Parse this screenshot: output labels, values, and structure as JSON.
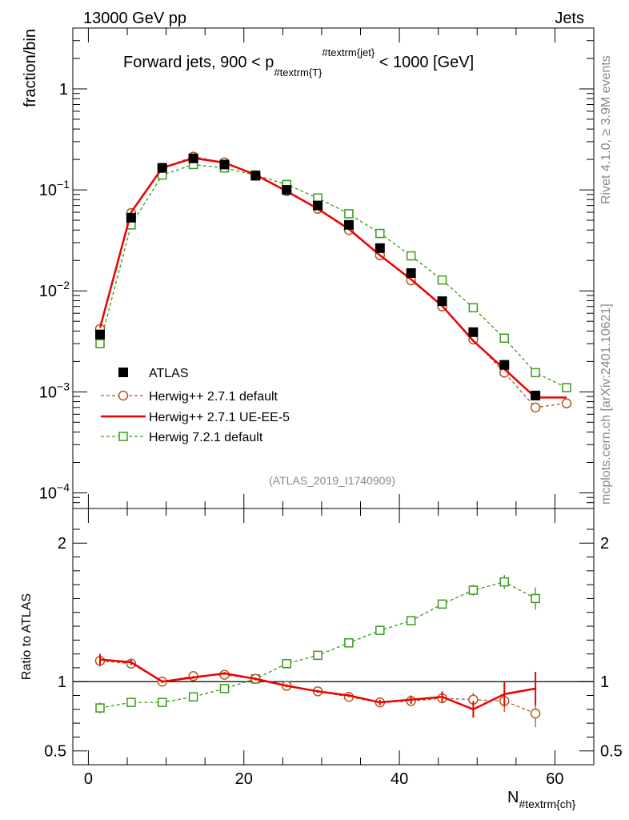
{
  "header": {
    "left": "13000 GeV pp",
    "right": "Jets"
  },
  "side": {
    "rivet": "Rivet 4.1.0, ≥ 3.9M events",
    "mcplots": "mcplots.cern.ch [arXiv:2401.10621]"
  },
  "analysis_id": "(ATLAS_2019_I1740909)",
  "colors": {
    "atlas": "#000000",
    "herwigpp_default": "#b05a1e",
    "herwigpp_ueee5": "#ee0000",
    "herwig7": "#3a9a1a"
  },
  "chart_data": [
    {
      "type": "scatter",
      "title_main": "Forward jets, 900 < p",
      "title_sub": "#textrm{T}",
      "title_sup": "#textrm{jet}",
      "title_tail": " < 1000 [GeV]",
      "ylabel": "fraction/bin",
      "yscale": "log",
      "ylim": [
        7e-05,
        4
      ],
      "xlim": [
        -2,
        65
      ],
      "y_tick_labels": [
        {
          "base": "10",
          "exp": "−4"
        },
        {
          "base": "10",
          "exp": "−3"
        },
        {
          "base": "10",
          "exp": "−2"
        },
        {
          "base": "10",
          "exp": "−1"
        },
        {
          "base": "1",
          "exp": ""
        }
      ],
      "y_tick_values": [
        0.0001,
        0.001,
        0.01,
        0.1,
        1
      ],
      "legend": [
        {
          "label": "ATLAS",
          "style": "marker-square"
        },
        {
          "label": "Herwig++ 2.7.1 default",
          "style": "dashed-circle"
        },
        {
          "label": "Herwig++ 2.7.1 UE-EE-5",
          "style": "solid-line"
        },
        {
          "label": "Herwig 7.2.1 default",
          "style": "dashed-square"
        }
      ],
      "x": [
        1.5,
        5.5,
        9.5,
        13.5,
        17.5,
        21.5,
        25.5,
        29.5,
        33.5,
        37.5,
        41.5,
        45.5,
        49.5,
        53.5,
        57.5,
        61.5
      ],
      "series": [
        {
          "name": "ATLAS",
          "values": [
            0.0037,
            0.053,
            0.165,
            0.205,
            0.178,
            0.138,
            0.1,
            0.07,
            0.045,
            0.0265,
            0.015,
            0.0079,
            0.0039,
            0.00185,
            0.00092,
            null
          ]
        },
        {
          "name": "Herwig++ 2.7.1 default",
          "values": [
            0.0042,
            0.059,
            0.165,
            0.213,
            0.187,
            0.14,
            0.097,
            0.065,
            0.04,
            0.0225,
            0.0127,
            0.007,
            0.0033,
            0.00155,
            0.0007,
            0.00077
          ]
        },
        {
          "name": "Herwig++ 2.7.1 UE-EE-5",
          "values": [
            0.0043,
            0.06,
            0.165,
            0.206,
            0.186,
            0.141,
            0.097,
            0.065,
            0.041,
            0.0225,
            0.013,
            0.0071,
            0.0032,
            0.00168,
            0.00088,
            0.00088
          ]
        },
        {
          "name": "Herwig 7.2.1 default",
          "values": [
            0.003,
            0.045,
            0.14,
            0.178,
            0.165,
            0.14,
            0.113,
            0.083,
            0.058,
            0.037,
            0.0222,
            0.0128,
            0.0068,
            0.0034,
            0.00155,
            0.0011
          ]
        }
      ]
    },
    {
      "type": "line",
      "ylabel": "Ratio to ATLAS",
      "xlabel_main": "N",
      "xlabel_sub": "#textrm{ch}",
      "ylim": [
        0.4,
        2.25
      ],
      "xlim": [
        -2,
        65
      ],
      "x_tick_labels": [
        "0",
        "20",
        "40",
        "60"
      ],
      "x_tick_values": [
        0,
        20,
        40,
        60
      ],
      "y_tick_labels": [
        "0.5",
        "1",
        "2"
      ],
      "y_tick_values": [
        0.5,
        1,
        2
      ],
      "reference_line": 1,
      "x": [
        1.5,
        5.5,
        9.5,
        13.5,
        17.5,
        21.5,
        25.5,
        29.5,
        33.5,
        37.5,
        41.5,
        45.5,
        49.5,
        53.5,
        57.5
      ],
      "series": [
        {
          "name": "Herwig++ 2.7.1 default",
          "values": [
            1.15,
            1.13,
            1.0,
            1.04,
            1.05,
            1.02,
            0.97,
            0.93,
            0.89,
            0.85,
            0.86,
            0.88,
            0.87,
            0.86,
            0.77
          ],
          "errors": [
            0.04,
            0.02,
            0.01,
            0.01,
            0.01,
            0.01,
            0.01,
            0.01,
            0.01,
            0.02,
            0.02,
            0.03,
            0.05,
            0.08,
            0.1
          ]
        },
        {
          "name": "Herwig++ 2.7.1 UE-EE-5",
          "values": [
            1.16,
            1.14,
            1.0,
            1.03,
            1.06,
            1.02,
            0.97,
            0.93,
            0.9,
            0.85,
            0.87,
            0.89,
            0.8,
            0.91,
            0.95
          ],
          "errors": [
            0.04,
            0.02,
            0.01,
            0.01,
            0.01,
            0.01,
            0.01,
            0.01,
            0.01,
            0.02,
            0.03,
            0.04,
            0.06,
            0.09,
            0.12
          ]
        },
        {
          "name": "Herwig 7.2.1 default",
          "values": [
            0.81,
            0.85,
            0.85,
            0.89,
            0.95,
            1.02,
            1.13,
            1.19,
            1.28,
            1.37,
            1.44,
            1.56,
            1.66,
            1.72,
            1.6
          ],
          "errors": [
            0.04,
            0.02,
            0.01,
            0.01,
            0.01,
            0.01,
            0.01,
            0.01,
            0.01,
            0.02,
            0.02,
            0.03,
            0.04,
            0.05,
            0.08
          ]
        }
      ]
    }
  ]
}
